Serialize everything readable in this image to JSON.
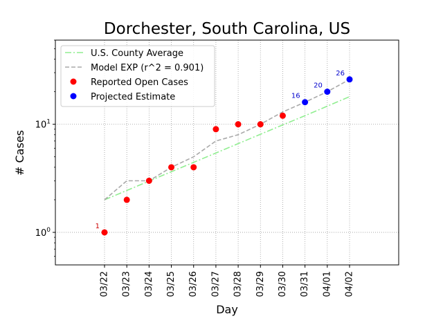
{
  "chart_data": {
    "type": "line",
    "title": "Dorchester, South Carolina, US",
    "xlabel": "Day",
    "ylabel": "# Cases",
    "y_scale": "log",
    "ylim": [
      0.5,
      60
    ],
    "y_ticks": [
      {
        "value": 1,
        "label": "10^0"
      },
      {
        "value": 10,
        "label": "10^1"
      }
    ],
    "grid": true,
    "legend_position": "top-left",
    "categories": [
      "03/22",
      "03/23",
      "03/24",
      "03/25",
      "03/26",
      "03/27",
      "03/28",
      "03/29",
      "03/30",
      "03/31",
      "04/01",
      "04/02"
    ],
    "series": [
      {
        "name": "U.S. County Average",
        "style": "dashdot",
        "color": "#90ee90",
        "values": [
          2.0,
          2.44,
          2.98,
          3.64,
          4.44,
          5.42,
          6.62,
          8.08,
          9.86,
          12.0,
          14.7,
          18.0
        ]
      },
      {
        "name": "Model EXP (r^2 = 0.901)",
        "style": "dashed",
        "color": "#a9a9a9",
        "values": [
          2,
          3,
          3,
          4,
          5,
          7,
          8,
          10,
          13,
          16,
          20,
          26
        ]
      },
      {
        "name": "Reported Open Cases",
        "style": "markers",
        "color": "#ff0000",
        "values": [
          1,
          2,
          3,
          4,
          4,
          9,
          10,
          10,
          12,
          null,
          null,
          null
        ]
      },
      {
        "name": "Projected Estimate",
        "style": "markers",
        "color": "#0000ff",
        "values": [
          null,
          null,
          null,
          null,
          null,
          null,
          null,
          null,
          null,
          16,
          20,
          26
        ]
      }
    ],
    "annotations": [
      {
        "x": "03/22",
        "text": "1",
        "color": "#cc0000"
      },
      {
        "x": "03/31",
        "text": "16",
        "color": "#0000cc"
      },
      {
        "x": "04/01",
        "text": "20",
        "color": "#0000cc"
      },
      {
        "x": "04/02",
        "text": "26",
        "color": "#0000cc"
      }
    ]
  }
}
